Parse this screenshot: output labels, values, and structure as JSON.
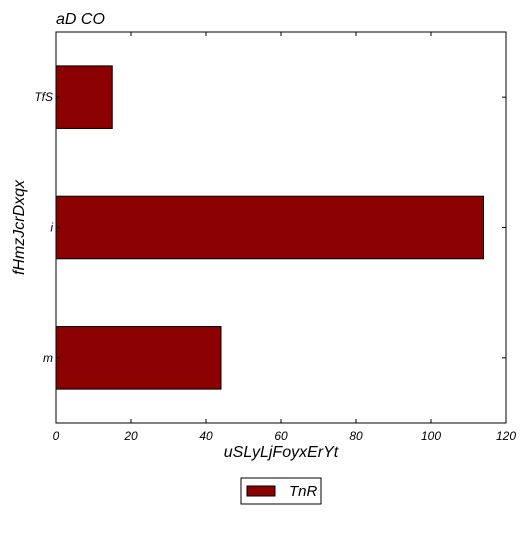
{
  "chart_data": {
    "type": "bar",
    "orientation": "horizontal",
    "title": "aD CO",
    "xlabel": "uSLyLjFoyxErYt",
    "ylabel": "fHmzJcrDxqx",
    "categories": [
      "m",
      "i",
      "TfS"
    ],
    "series": [
      {
        "name": "TnR",
        "values": [
          44,
          114,
          15
        ],
        "color": "#8b0000"
      }
    ],
    "xlim": [
      0,
      120
    ],
    "xticks": [
      0,
      20,
      40,
      60,
      80,
      100,
      120
    ],
    "grid": false,
    "legend": {
      "position": "bottom-center",
      "entries": [
        "TnR"
      ]
    }
  }
}
